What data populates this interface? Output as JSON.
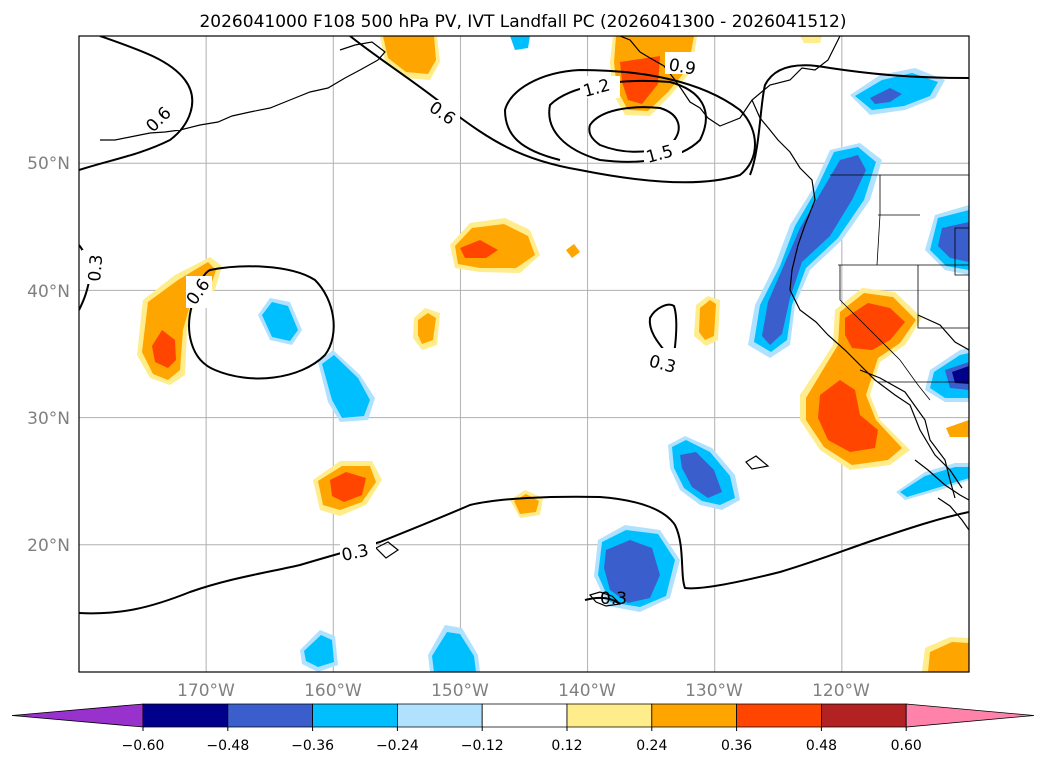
{
  "title": "2026041000 F108 500 hPa PV, IVT Landfall PC (2026041300 - 2026041512)",
  "map": {
    "lat_labels": [
      "50°N",
      "40°N",
      "30°N",
      "20°N"
    ],
    "lon_labels": [
      "170°W",
      "160°W",
      "150°W",
      "140°W",
      "130°W",
      "120°W"
    ],
    "lat_values": [
      50,
      40,
      30,
      20
    ],
    "lon_values": [
      -170,
      -160,
      -150,
      -140,
      -130,
      -120
    ],
    "extent": {
      "lon_min": -180,
      "lon_max": -110,
      "lat_min": 10,
      "lat_max": 60
    },
    "pv_contour_labels": [
      "0.6",
      "0.6",
      "0.3",
      "0.6",
      "1.2",
      "1.5",
      "0.9",
      "0.3",
      "0.3",
      "0.3"
    ]
  },
  "colorbar": {
    "colors": [
      "#9932cc",
      "#00008b",
      "#3a5fcd",
      "#00bfff",
      "#b0e2ff",
      "#ffffff",
      "#ffec8b",
      "#ffa500",
      "#ff4500",
      "#b22222",
      "#ff82ab"
    ],
    "tick_labels": [
      "−0.60",
      "−0.48",
      "−0.36",
      "−0.24",
      "−0.12",
      "0.12",
      "0.24",
      "0.36",
      "0.48",
      "0.60"
    ],
    "tick_values": [
      -0.6,
      -0.48,
      -0.36,
      -0.24,
      -0.12,
      0.12,
      0.24,
      0.36,
      0.48,
      0.6
    ]
  },
  "chart_data": {
    "type": "heatmap",
    "title": "2026041000 F108 500 hPa PV, IVT Landfall PC (2026041300 - 2026041512)",
    "field_shaded": "IVT Landfall PC",
    "field_contoured": "500 hPa PV",
    "contour_levels": [
      0.3,
      0.6,
      0.9,
      1.2,
      1.5
    ],
    "colorbar_levels": [
      -0.6,
      -0.48,
      -0.36,
      -0.24,
      -0.12,
      0.12,
      0.24,
      0.36,
      0.48,
      0.6
    ],
    "xlim": [
      -180,
      -110
    ],
    "ylim": [
      10,
      60
    ]
  }
}
